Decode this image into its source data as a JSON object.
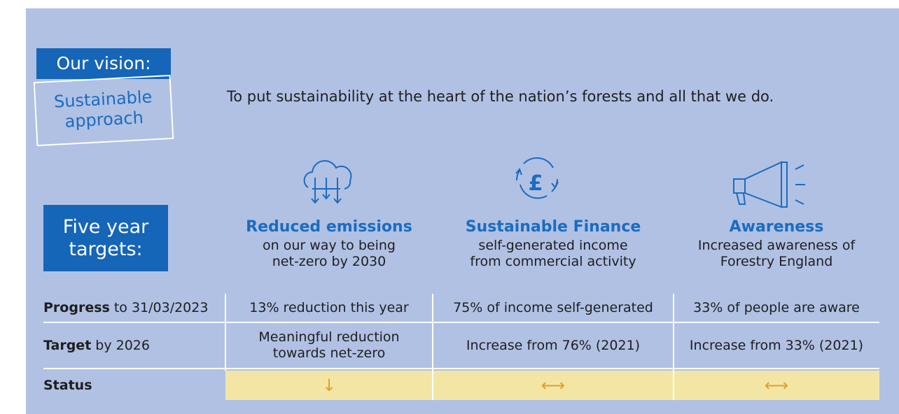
{
  "vision": {
    "label": "Our vision:",
    "title_lines": [
      "Sustainable",
      "approach"
    ],
    "statement": "To put sustainability at the heart of the nation’s forests and all that we do."
  },
  "targets_heading_lines": [
    "Five year",
    "targets:"
  ],
  "columns": [
    {
      "title": "Reduced emissions",
      "description_lines": [
        "on our way to being",
        "net-zero by 2030"
      ]
    },
    {
      "title": "Sustainable Finance",
      "description_lines": [
        "self-generated income",
        "from commercial activity"
      ]
    },
    {
      "title": "Awareness",
      "description_lines": [
        "Increased awareness of",
        "Forestry England"
      ]
    }
  ],
  "rows": [
    {
      "label_bold": "Progress",
      "label_rest": "to 31/03/2023",
      "cells": [
        [
          "13% reduction this year"
        ],
        [
          "75% of income self-generated"
        ],
        [
          "33% of people are aware"
        ]
      ]
    },
    {
      "label_bold": "Target",
      "label_rest": "by 2026",
      "cells": [
        [
          "Meaningful reduction",
          "towards net-zero"
        ],
        [
          "Increase from 76% (2021)"
        ],
        [
          "Increase from 33% (2021)"
        ]
      ]
    },
    {
      "label_bold": "Status",
      "cells": [
        [
          "↓"
        ],
        [
          "⟷"
        ],
        [
          "⟷"
        ]
      ]
    }
  ]
}
